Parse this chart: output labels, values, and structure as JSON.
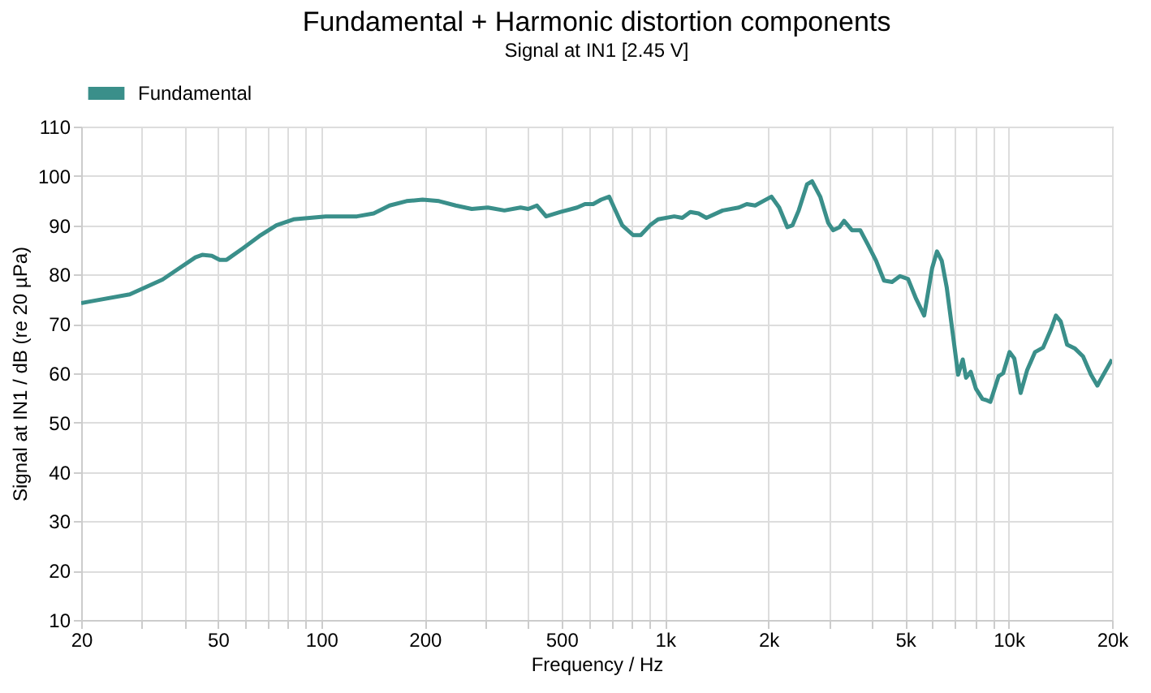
{
  "chart_data": {
    "type": "line",
    "title": "Fundamental + Harmonic distortion components",
    "subtitle": "Signal at IN1 [2.45 V]",
    "xlabel": "Frequency / Hz",
    "ylabel": "Signal at IN1 / dB (re 20 µPa)",
    "x": [
      20,
      21,
      27.7,
      34.5,
      38.6,
      43,
      45,
      48,
      50.6,
      53,
      59,
      66,
      74,
      83,
      92.5,
      103,
      127,
      142,
      158,
      177,
      197,
      220,
      246,
      274,
      305,
      341,
      380,
      400,
      424,
      451,
      497,
      555,
      585,
      618,
      652,
      688,
      711,
      751,
      808,
      850,
      905,
      955,
      1064,
      1123,
      1185,
      1252,
      1320,
      1472,
      1640,
      1730,
      1830,
      1930,
      2040,
      2150,
      2270,
      2350,
      2450,
      2590,
      2680,
      2830,
      2985,
      3085,
      3220,
      3320,
      3500,
      3700,
      3900,
      4115,
      4340,
      4580,
      4830,
      5100,
      5380,
      5680,
      5990,
      6190,
      6390,
      6610,
      6970,
      7130,
      7355,
      7520,
      7760,
      8030,
      8390,
      8660,
      8850,
      9350,
      9640,
      10060,
      10390,
      10840,
      11320,
      11940,
      12600,
      13300,
      13730,
      14180,
      14800,
      15610,
      16470,
      17370,
      18130,
      18520,
      20000
    ],
    "series": [
      {
        "name": "Fundamental",
        "color": "#3a8f8a",
        "values": [
          74.2,
          74.5,
          76,
          79,
          81.3,
          83.5,
          84,
          83.8,
          83,
          83,
          85.3,
          87.8,
          90,
          91.2,
          91.5,
          91.8,
          91.8,
          92.4,
          94,
          94.9,
          95.2,
          94.9,
          94,
          93.3,
          93.6,
          93,
          93.6,
          93.3,
          94,
          91.8,
          92.7,
          93.6,
          94.3,
          94.3,
          95.2,
          95.8,
          93.6,
          90,
          88,
          88,
          90,
          91.2,
          91.8,
          91.5,
          92.7,
          92.4,
          91.5,
          93,
          93.6,
          94.3,
          94,
          94.9,
          95.8,
          93.6,
          89.6,
          90,
          93,
          98.3,
          98.9,
          95.8,
          90.5,
          89,
          89.6,
          90.9,
          89,
          89,
          86,
          82.8,
          78.8,
          78.5,
          79.7,
          79.1,
          75.1,
          71.7,
          81.3,
          84.7,
          82.8,
          77.3,
          65,
          59.7,
          62.8,
          59.1,
          60.3,
          56.9,
          54.8,
          54.5,
          54.2,
          59.4,
          60,
          64.3,
          63,
          56,
          60.6,
          64.3,
          65.2,
          69,
          71.7,
          70.5,
          65.8,
          65,
          63.4,
          59.7,
          57.5,
          58.7,
          62.8
        ]
      }
    ],
    "log": "x",
    "xlim": [
      20,
      20000
    ],
    "ylim": [
      10,
      110
    ],
    "xticks": [
      20,
      {
        "value": 30,
        "label": null
      },
      {
        "value": 40,
        "label": null
      },
      50,
      {
        "value": 60,
        "label": null
      },
      {
        "value": 70,
        "label": null
      },
      {
        "value": 80,
        "label": null
      },
      {
        "value": 90,
        "label": null
      },
      100,
      200,
      {
        "value": 300,
        "label": null
      },
      {
        "value": 400,
        "label": null
      },
      500,
      {
        "value": 600,
        "label": null
      },
      {
        "value": 700,
        "label": null
      },
      {
        "value": 800,
        "label": null
      },
      {
        "value": 900,
        "label": null
      },
      {
        "value": 1000,
        "label": "1k"
      },
      {
        "value": 2000,
        "label": "2k"
      },
      {
        "value": 3000,
        "label": null
      },
      {
        "value": 4000,
        "label": null
      },
      {
        "value": 5000,
        "label": "5k"
      },
      {
        "value": 6000,
        "label": null
      },
      {
        "value": 7000,
        "label": null
      },
      {
        "value": 8000,
        "label": null
      },
      {
        "value": 9000,
        "label": null
      },
      {
        "value": 10000,
        "label": "10k"
      },
      {
        "value": 20000,
        "label": "20k"
      }
    ],
    "yticks": [
      10,
      20,
      30,
      40,
      50,
      60,
      70,
      80,
      90,
      100,
      110
    ],
    "grid": true,
    "legend": "top left",
    "marker": "none",
    "line_style": "solid"
  }
}
